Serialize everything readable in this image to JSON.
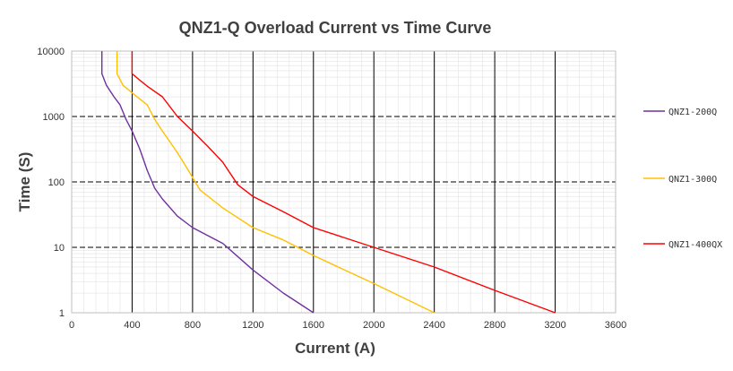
{
  "chart_data": {
    "type": "line",
    "title": "QNZ1-Q Overload Current  vs  Time Curve",
    "xlabel": "Current (A)",
    "ylabel": "Time (S)",
    "xlim": [
      0,
      3600
    ],
    "ylim": [
      1,
      10000
    ],
    "yscale": "log",
    "grid": true,
    "legend_position": "right",
    "x_ticks": [
      "0",
      "400",
      "800",
      "1200",
      "1600",
      "2000",
      "2400",
      "2800",
      "3200",
      "3600"
    ],
    "y_ticks": [
      "1",
      "10",
      "100",
      "1000",
      "10000"
    ],
    "series": [
      {
        "name": "QNZ1-200Q",
        "color": "#7030a0",
        "points": [
          [
            200,
            10000
          ],
          [
            200,
            4500
          ],
          [
            230,
            3000
          ],
          [
            280,
            2000
          ],
          [
            320,
            1500
          ],
          [
            360,
            900
          ],
          [
            400,
            600
          ],
          [
            450,
            320
          ],
          [
            500,
            150
          ],
          [
            550,
            80
          ],
          [
            600,
            55
          ],
          [
            700,
            30
          ],
          [
            800,
            20
          ],
          [
            1000,
            11.5
          ],
          [
            1200,
            4.5
          ],
          [
            1400,
            2
          ],
          [
            1600,
            1
          ]
        ]
      },
      {
        "name": "QNZ1-300Q",
        "color": "#ffc000",
        "points": [
          [
            300,
            10000
          ],
          [
            300,
            4500
          ],
          [
            340,
            3000
          ],
          [
            400,
            2300
          ],
          [
            500,
            1500
          ],
          [
            550,
            900
          ],
          [
            600,
            600
          ],
          [
            700,
            280
          ],
          [
            780,
            140
          ],
          [
            850,
            75
          ],
          [
            1000,
            40
          ],
          [
            1200,
            20
          ],
          [
            1400,
            13
          ],
          [
            1600,
            7.5
          ],
          [
            2000,
            2.8
          ],
          [
            2400,
            1
          ]
        ]
      },
      {
        "name": "QNZ1-400QX",
        "color": "#ff0000",
        "points": [
          [
            400,
            10000
          ],
          [
            400,
            4500
          ],
          [
            450,
            3600
          ],
          [
            500,
            2900
          ],
          [
            600,
            2000
          ],
          [
            700,
            1000
          ],
          [
            800,
            600
          ],
          [
            900,
            350
          ],
          [
            1000,
            200
          ],
          [
            1100,
            90
          ],
          [
            1200,
            60
          ],
          [
            1400,
            35
          ],
          [
            1600,
            20
          ],
          [
            2000,
            10
          ],
          [
            2400,
            5
          ],
          [
            2800,
            2.2
          ],
          [
            3200,
            1
          ]
        ]
      }
    ]
  }
}
